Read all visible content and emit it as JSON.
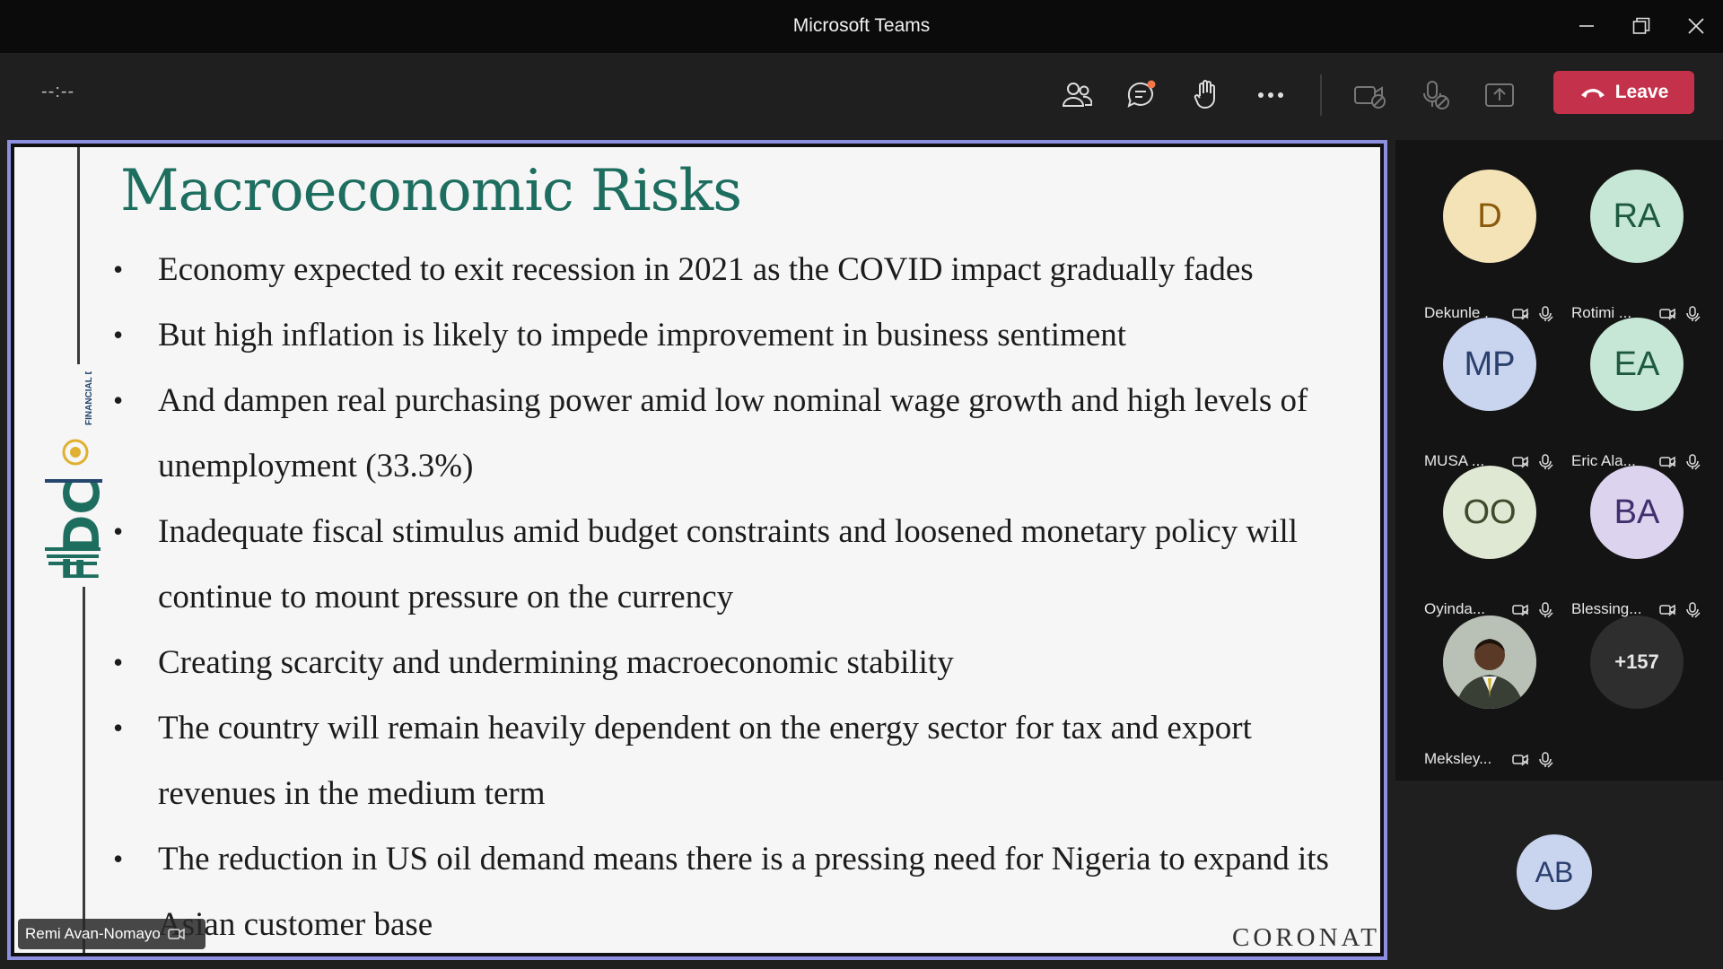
{
  "window": {
    "title": "Microsoft Teams"
  },
  "toolbar": {
    "timer": "--:--",
    "leave_label": "Leave"
  },
  "slide": {
    "title": "Macroeconomic Risks",
    "bullets": [
      "Economy expected to exit recession in 2021 as the COVID impact gradually fades",
      "But high inflation is likely to impede improvement in business sentiment",
      "And dampen real purchasing power amid low nominal wage growth and high levels of unemployment (33.3%)",
      "Inadequate fiscal stimulus amid budget constraints and loosened monetary policy will continue to mount pressure on the currency",
      "Creating scarcity and undermining macroeconomic stability",
      "The country will remain heavily dependent on the energy sector for tax and export revenues in the medium term",
      "The reduction in US oil demand means there is a pressing need for Nigeria to expand its Asian customer base"
    ],
    "logo_text": "FDC",
    "logo_subtext": "FINANCIAL DERIVATIVES COMPANY",
    "footer_brand": "CORONAT"
  },
  "presenter": {
    "name": "Remi Avan-Nomayo"
  },
  "participants": [
    {
      "initials": "D",
      "name": "Dekunle .",
      "bg": "#f5e3b8",
      "fg": "#8a5a0c"
    },
    {
      "initials": "RA",
      "name": "Rotimi ...",
      "bg": "#c6e6d6",
      "fg": "#1d5a3d"
    },
    {
      "initials": "MP",
      "name": "MUSA ...",
      "bg": "#c9d4ee",
      "fg": "#2a3f6e"
    },
    {
      "initials": "EA",
      "name": "Eric Ala...",
      "bg": "#c6e6d6",
      "fg": "#1d5a3d"
    },
    {
      "initials": "OO",
      "name": "Oyinda...",
      "bg": "#dfe8d2",
      "fg": "#3d4a2c"
    },
    {
      "initials": "BA",
      "name": "Blessing...",
      "bg": "#dcd3ee",
      "fg": "#3f2f6e"
    },
    {
      "initials": "",
      "name": "Meksley...",
      "bg": "#9aa09a",
      "fg": "#ffffff"
    },
    {
      "initials": "+157",
      "name": "",
      "bg": "#2e2e2e",
      "fg": "#e6e6e6"
    }
  ],
  "self": {
    "initials": "AB",
    "bg": "#c9d4ee",
    "fg": "#2a3f6e"
  }
}
